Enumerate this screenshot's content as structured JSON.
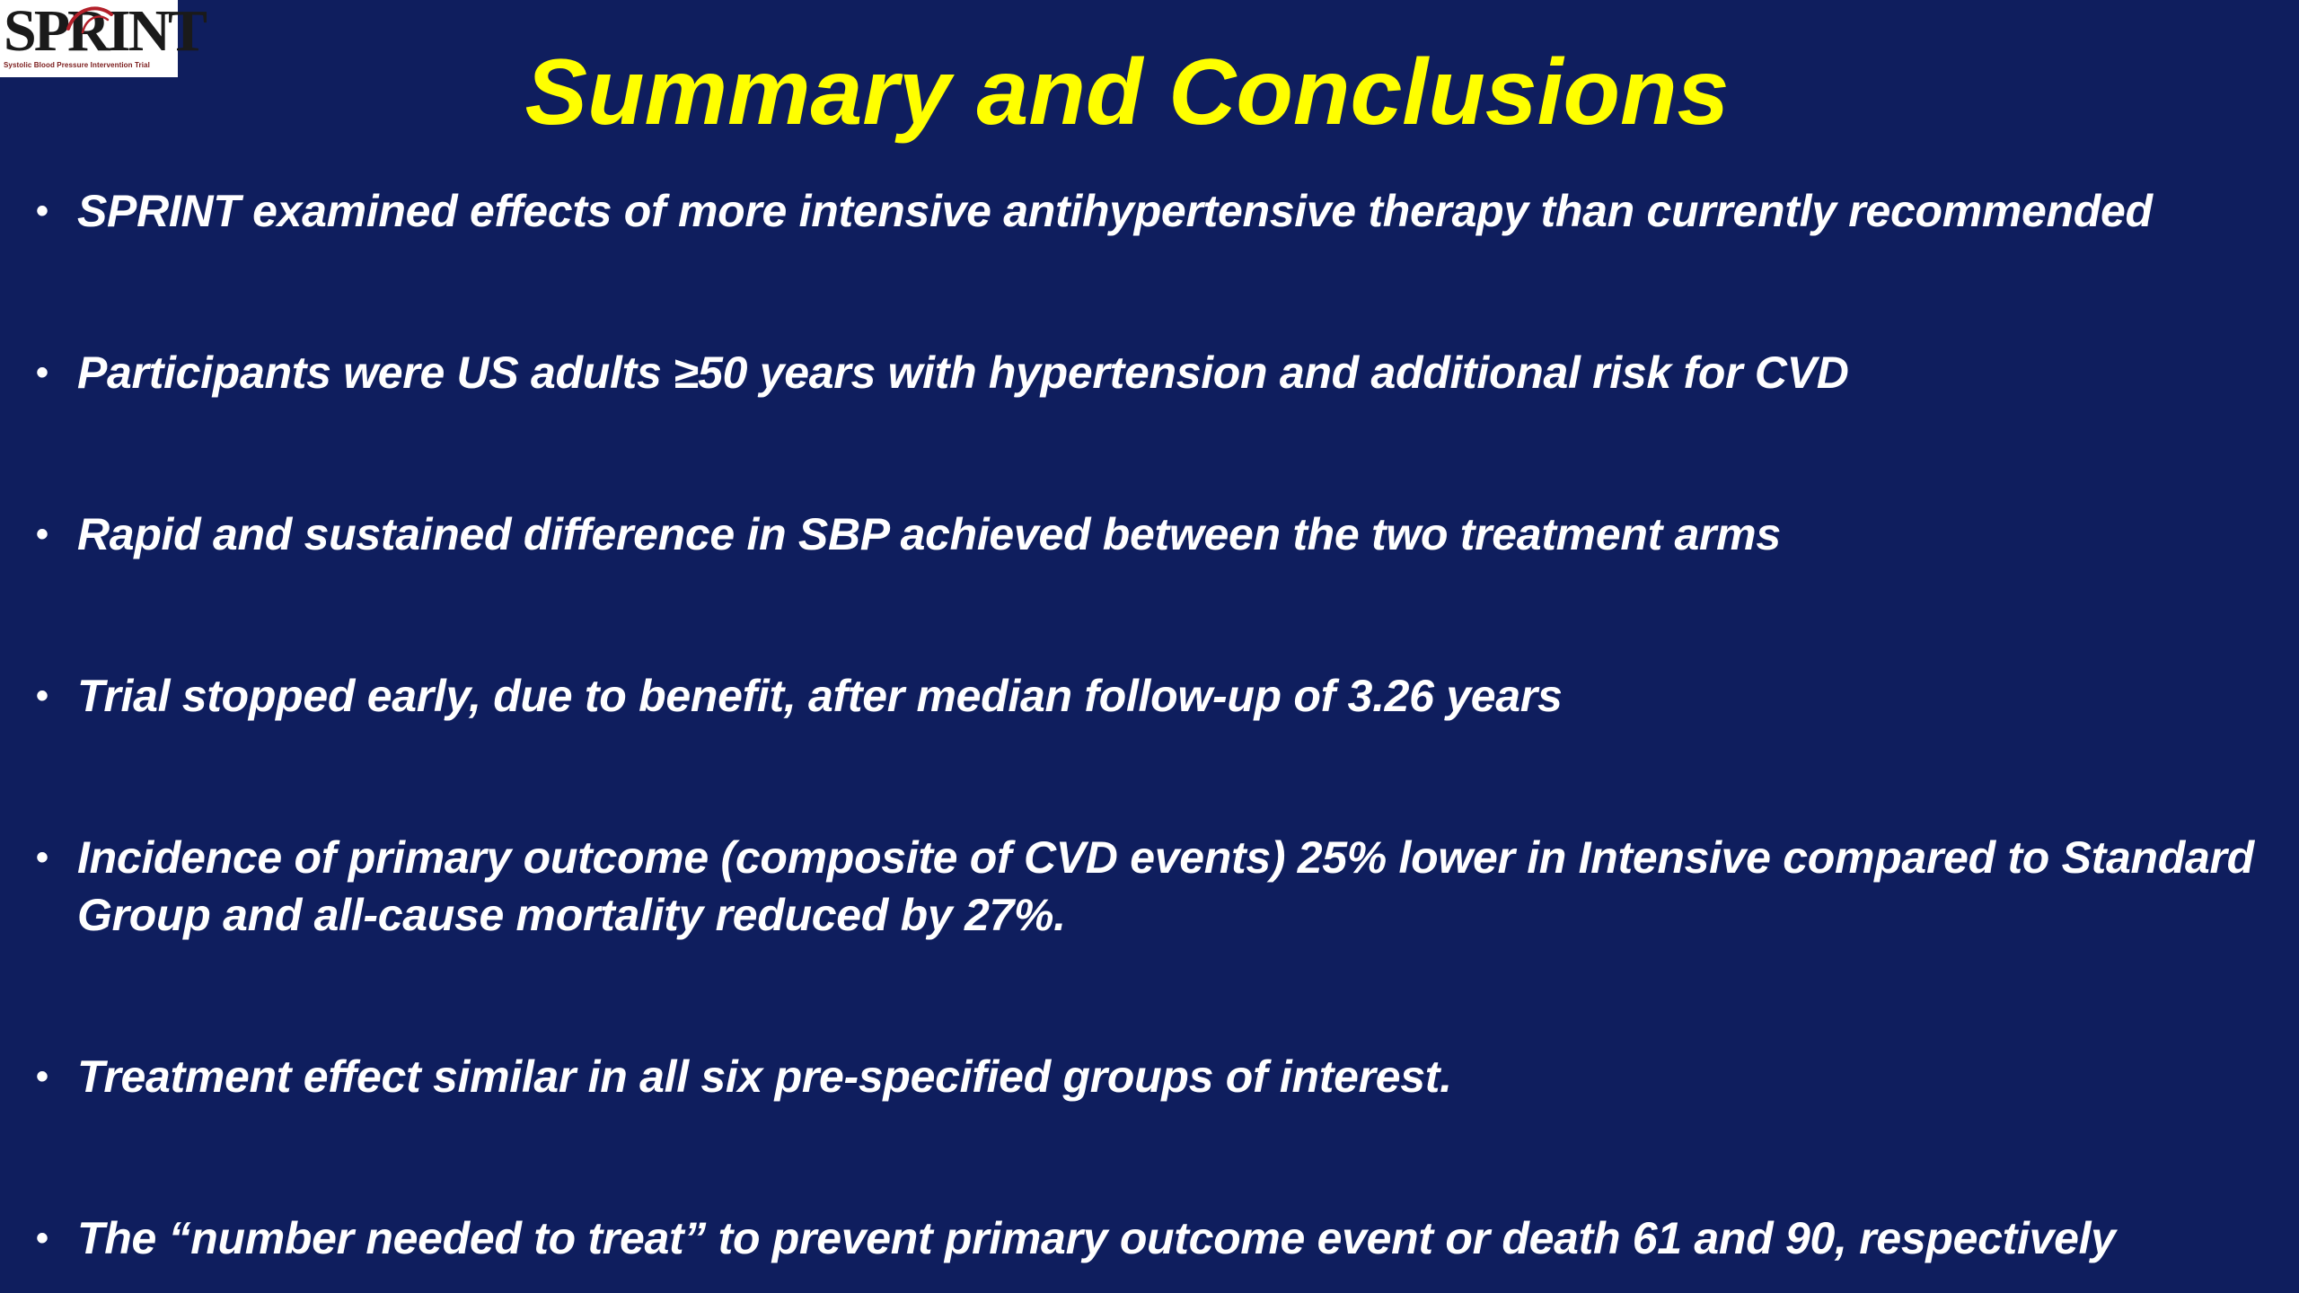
{
  "logo": {
    "word": "SPRINT",
    "tagline": "Systolic Blood Pressure Intervention Trial"
  },
  "slide": {
    "title": "Summary and Conclusions",
    "bullet_symbol": "•",
    "bullets": [
      "SPRINT examined effects of more intensive antihypertensive therapy than currently recommended",
      "Participants were US adults ≥50 years with hypertension and additional risk for CVD",
      "Rapid and sustained difference in SBP achieved between the two treatment arms",
      "Trial stopped early, due to benefit, after median follow-up of 3.26 years",
      "Incidence of primary outcome (composite of CVD events) 25% lower in Intensive compared to Standard Group and all-cause mortality reduced by 27%.",
      "Treatment effect similar in all six pre-specified groups of interest.",
      "The “number needed to treat” to prevent primary outcome event or death 61 and 90, respectively"
    ]
  },
  "colors": {
    "background": "#0f1e5e",
    "title": "#ffff00",
    "body_text": "#ffffff"
  }
}
